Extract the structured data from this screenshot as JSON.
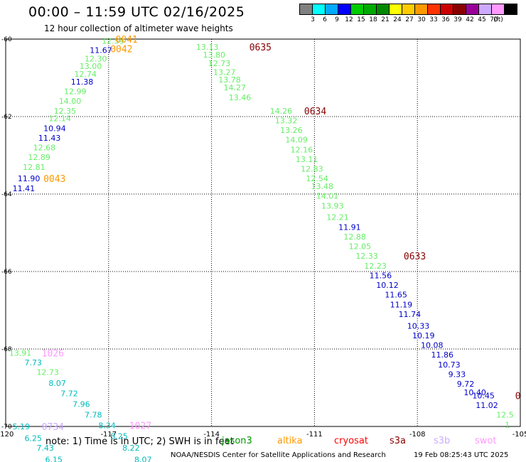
{
  "header": {
    "title": "00:00 – 11:59 UTC 02/16/2025",
    "subtitle": "12 hour collection of altimeter wave heights"
  },
  "legend": {
    "unit_label": "(ft)",
    "bins": [
      {
        "label": "",
        "color": "#808080"
      },
      {
        "label": "3",
        "color": "#00ffff"
      },
      {
        "label": "6",
        "color": "#00aaff"
      },
      {
        "label": "9",
        "color": "#0000ff"
      },
      {
        "label": "12",
        "color": "#00cc00"
      },
      {
        "label": "15",
        "color": "#00aa00"
      },
      {
        "label": "18",
        "color": "#008800"
      },
      {
        "label": "21",
        "color": "#ffff00"
      },
      {
        "label": "24",
        "color": "#ffcc00"
      },
      {
        "label": "27",
        "color": "#ff9900"
      },
      {
        "label": "30",
        "color": "#ff3300"
      },
      {
        "label": "33",
        "color": "#cc0000"
      },
      {
        "label": "36",
        "color": "#880000"
      },
      {
        "label": "39",
        "color": "#990099"
      },
      {
        "label": "42",
        "color": "#ccaaff"
      },
      {
        "label": "45",
        "color": "#ff99ff"
      },
      {
        "label": "70",
        "color": "#000000"
      }
    ]
  },
  "axes": {
    "lon_labels": [
      {
        "lon": -120,
        "text": "-120"
      },
      {
        "lon": -117,
        "text": "-117"
      },
      {
        "lon": -114,
        "text": "-114"
      },
      {
        "lon": -111,
        "text": "-111"
      },
      {
        "lon": -108,
        "text": "-108"
      },
      {
        "lon": -105,
        "text": "-105"
      }
    ],
    "lat_labels": [
      {
        "lat": -60,
        "text": "-60"
      },
      {
        "lat": -62,
        "text": "-62"
      },
      {
        "lat": -64,
        "text": "-64"
      },
      {
        "lat": -66,
        "text": "-66"
      },
      {
        "lat": -68,
        "text": "-68"
      },
      {
        "lat": -70,
        "text": "-70"
      }
    ]
  },
  "colors": {
    "jason3": "#009900",
    "altika": "#ff9900",
    "cryosat": "#ff0000",
    "s3a": "#880000",
    "s3b": "#ccaaff",
    "swot": "#ff99ff"
  },
  "tracks": [
    {
      "name": "altika-descending-0041-0043",
      "points": [
        {
          "lon": -117.2,
          "lat": -60.05,
          "v": "12.59",
          "c": "#66ee66"
        },
        {
          "lon": -117.55,
          "lat": -60.28,
          "v": "11.67",
          "c": "#0000cc"
        },
        {
          "lon": -117.7,
          "lat": -60.5,
          "v": "12.30",
          "c": "#66ee66"
        },
        {
          "lon": -117.85,
          "lat": -60.7,
          "v": "13.00",
          "c": "#66ee66"
        },
        {
          "lon": -118.0,
          "lat": -60.9,
          "v": "12.74",
          "c": "#66ee66"
        },
        {
          "lon": -118.1,
          "lat": -61.1,
          "v": "11.38",
          "c": "#0000cc"
        },
        {
          "lon": -118.3,
          "lat": -61.35,
          "v": "12.99",
          "c": "#66ee66"
        },
        {
          "lon": -118.45,
          "lat": -61.6,
          "v": "14.00",
          "c": "#66ee66"
        },
        {
          "lon": -118.6,
          "lat": -61.85,
          "v": "12.35",
          "c": "#66ee66"
        },
        {
          "lon": -118.75,
          "lat": -62.05,
          "v": "12.14",
          "c": "#66ee66"
        },
        {
          "lon": -118.9,
          "lat": -62.3,
          "v": "10.94",
          "c": "#0000cc"
        },
        {
          "lon": -119.05,
          "lat": -62.55,
          "v": "11.43",
          "c": "#0000cc"
        },
        {
          "lon": -119.2,
          "lat": -62.8,
          "v": "12.68",
          "c": "#66ee66"
        },
        {
          "lon": -119.35,
          "lat": -63.05,
          "v": "12.89",
          "c": "#66ee66"
        },
        {
          "lon": -119.5,
          "lat": -63.3,
          "v": "12.81",
          "c": "#66ee66"
        },
        {
          "lon": -119.65,
          "lat": -63.6,
          "v": "11.90",
          "c": "#0000cc"
        },
        {
          "lon": -119.8,
          "lat": -63.85,
          "v": "11.41",
          "c": "#0000cc"
        }
      ]
    },
    {
      "name": "s3a-descending-0633-0635",
      "points": [
        {
          "lon": -114.45,
          "lat": -60.2,
          "v": "13.13",
          "c": "#66ee66"
        },
        {
          "lon": -114.25,
          "lat": -60.4,
          "v": "13.80",
          "c": "#66ee66"
        },
        {
          "lon": -114.1,
          "lat": -60.62,
          "v": "12.73",
          "c": "#66ee66"
        },
        {
          "lon": -113.95,
          "lat": -60.85,
          "v": "13.27",
          "c": "#66ee66"
        },
        {
          "lon": -113.8,
          "lat": -61.05,
          "v": "13.78",
          "c": "#66ee66"
        },
        {
          "lon": -113.65,
          "lat": -61.25,
          "v": "14.27",
          "c": "#66ee66"
        },
        {
          "lon": -113.5,
          "lat": -61.5,
          "v": "13.46",
          "c": "#66ee66"
        },
        {
          "lon": -112.3,
          "lat": -61.85,
          "v": "14.26",
          "c": "#66ee66"
        },
        {
          "lon": -112.15,
          "lat": -62.1,
          "v": "13.32",
          "c": "#66ee66"
        },
        {
          "lon": -112.0,
          "lat": -62.35,
          "v": "13.26",
          "c": "#66ee66"
        },
        {
          "lon": -111.85,
          "lat": -62.6,
          "v": "14.09",
          "c": "#66ee66"
        },
        {
          "lon": -111.7,
          "lat": -62.85,
          "v": "12.16",
          "c": "#66ee66"
        },
        {
          "lon": -111.55,
          "lat": -63.1,
          "v": "13.11",
          "c": "#66ee66"
        },
        {
          "lon": -111.4,
          "lat": -63.35,
          "v": "12.83",
          "c": "#66ee66"
        },
        {
          "lon": -111.25,
          "lat": -63.6,
          "v": "12.54",
          "c": "#66ee66"
        },
        {
          "lon": -111.1,
          "lat": -63.8,
          "v": "13.48",
          "c": "#66ee66"
        },
        {
          "lon": -110.95,
          "lat": -64.05,
          "v": "14.01",
          "c": "#66ee66"
        },
        {
          "lon": -110.8,
          "lat": -64.3,
          "v": "13.93",
          "c": "#66ee66"
        },
        {
          "lon": -110.65,
          "lat": -64.6,
          "v": "12.21",
          "c": "#66ee66"
        },
        {
          "lon": -110.3,
          "lat": -64.85,
          "v": "11.91",
          "c": "#0000cc"
        },
        {
          "lon": -110.15,
          "lat": -65.1,
          "v": "12.88",
          "c": "#66ee66"
        },
        {
          "lon": -110.0,
          "lat": -65.35,
          "v": "12.05",
          "c": "#66ee66"
        },
        {
          "lon": -109.8,
          "lat": -65.6,
          "v": "12.33",
          "c": "#66ee66"
        },
        {
          "lon": -109.55,
          "lat": -65.85,
          "v": "12.23",
          "c": "#66ee66"
        },
        {
          "lon": -109.4,
          "lat": -66.1,
          "v": "11.56",
          "c": "#0000cc"
        },
        {
          "lon": -109.2,
          "lat": -66.35,
          "v": "10.12",
          "c": "#0000cc"
        },
        {
          "lon": -108.95,
          "lat": -66.6,
          "v": "11.65",
          "c": "#0000cc"
        },
        {
          "lon": -108.8,
          "lat": -66.85,
          "v": "11.19",
          "c": "#0000cc"
        },
        {
          "lon": -108.55,
          "lat": -67.1,
          "v": "11.74",
          "c": "#0000cc"
        },
        {
          "lon": -108.3,
          "lat": -67.4,
          "v": "10.33",
          "c": "#0000cc"
        },
        {
          "lon": -108.15,
          "lat": -67.65,
          "v": "10.19",
          "c": "#0000cc"
        },
        {
          "lon": -107.9,
          "lat": -67.9,
          "v": "10.08",
          "c": "#0000cc"
        },
        {
          "lon": -107.6,
          "lat": -68.15,
          "v": "11.86",
          "c": "#0000cc"
        },
        {
          "lon": -107.4,
          "lat": -68.4,
          "v": "10.73",
          "c": "#0000cc"
        },
        {
          "lon": -107.1,
          "lat": -68.65,
          "v": "9.33",
          "c": "#0000cc"
        },
        {
          "lon": -106.85,
          "lat": -68.9,
          "v": "9.72",
          "c": "#0000cc"
        },
        {
          "lon": -106.65,
          "lat": -69.12,
          "v": "10.40",
          "c": "#0000cc"
        },
        {
          "lon": -106.4,
          "lat": -69.2,
          "v": "10.45",
          "c": "#0000cc"
        },
        {
          "lon": -106.3,
          "lat": -69.45,
          "v": "11.02",
          "c": "#0000cc"
        },
        {
          "lon": -105.7,
          "lat": -69.7,
          "v": "12.5",
          "c": "#66ee66"
        },
        {
          "lon": -105.45,
          "lat": -69.95,
          "v": "1",
          "c": "#66ee66"
        }
      ]
    },
    {
      "name": "swot-descending-1026-1027",
      "points": [
        {
          "lon": -119.9,
          "lat": -68.1,
          "v": "13.91",
          "c": "#66ee66"
        },
        {
          "lon": -119.45,
          "lat": -68.35,
          "v": "7.73",
          "c": "#00bbbb"
        },
        {
          "lon": -119.1,
          "lat": -68.6,
          "v": "12.73",
          "c": "#66ee66"
        },
        {
          "lon": -118.75,
          "lat": -68.88,
          "v": "8.07",
          "c": "#00bbbb"
        },
        {
          "lon": -118.4,
          "lat": -69.15,
          "v": "7.72",
          "c": "#00bbbb"
        },
        {
          "lon": -118.05,
          "lat": -69.42,
          "v": "7.96",
          "c": "#00bbbb"
        },
        {
          "lon": -117.7,
          "lat": -69.7,
          "v": "7.78",
          "c": "#00bbbb"
        },
        {
          "lon": -117.3,
          "lat": -69.97,
          "v": "8.34",
          "c": "#00bbbb"
        },
        {
          "lon": -116.95,
          "lat": -70.25,
          "v": "8.25",
          "c": "#00bbbb"
        },
        {
          "lon": -116.6,
          "lat": -70.55,
          "v": "8.22",
          "c": "#00bbbb"
        },
        {
          "lon": -116.25,
          "lat": -70.85,
          "v": "8.07",
          "c": "#00bbbb"
        }
      ]
    },
    {
      "name": "s3b-0734",
      "points": [
        {
          "lon": -119.8,
          "lat": -70.0,
          "v": "5.19",
          "c": "#00bbbb"
        },
        {
          "lon": -119.45,
          "lat": -70.3,
          "v": "6.25",
          "c": "#00bbbb"
        },
        {
          "lon": -119.1,
          "lat": -70.55,
          "v": "7.43",
          "c": "#00bbbb"
        },
        {
          "lon": -118.85,
          "lat": -70.85,
          "v": "6.15",
          "c": "#00bbbb"
        }
      ]
    }
  ],
  "time_labels": [
    {
      "lon": -116.8,
      "lat": -60.0,
      "text": "0041",
      "c": "#ff9900"
    },
    {
      "lon": -116.95,
      "lat": -60.25,
      "text": "0042",
      "c": "#ff9900"
    },
    {
      "lon": -118.9,
      "lat": -63.6,
      "text": "0043",
      "c": "#ff9900"
    },
    {
      "lon": -112.9,
      "lat": -60.2,
      "text": "0635",
      "c": "#880000"
    },
    {
      "lon": -111.3,
      "lat": -61.85,
      "text": "0634",
      "c": "#880000"
    },
    {
      "lon": -108.4,
      "lat": -65.6,
      "text": "0633",
      "c": "#880000"
    },
    {
      "lon": -105.15,
      "lat": -69.2,
      "text": "0",
      "c": "#880000"
    },
    {
      "lon": -118.95,
      "lat": -68.1,
      "text": "1026",
      "c": "#ff99ff"
    },
    {
      "lon": -116.4,
      "lat": -69.97,
      "text": "1027",
      "c": "#ff99ff"
    },
    {
      "lon": -118.95,
      "lat": -70.0,
      "text": "0734",
      "c": "#ccaaff"
    }
  ],
  "footer": {
    "note": "note: 1) Time is in UTC; 2) SWH is in feet",
    "satellites": [
      {
        "label": "jason3",
        "color": "#009900"
      },
      {
        "label": "altika",
        "color": "#ff9900"
      },
      {
        "label": "cryosat",
        "color": "#ff0000"
      },
      {
        "label": "s3a",
        "color": "#880000"
      },
      {
        "label": "s3b",
        "color": "#ccaaff"
      },
      {
        "label": "swot",
        "color": "#ff99ff"
      }
    ],
    "credit": "NOAA/NESDIS Center for Satellite Applications and Research",
    "generated": "19 Feb 08:25:43 UTC 2025"
  }
}
